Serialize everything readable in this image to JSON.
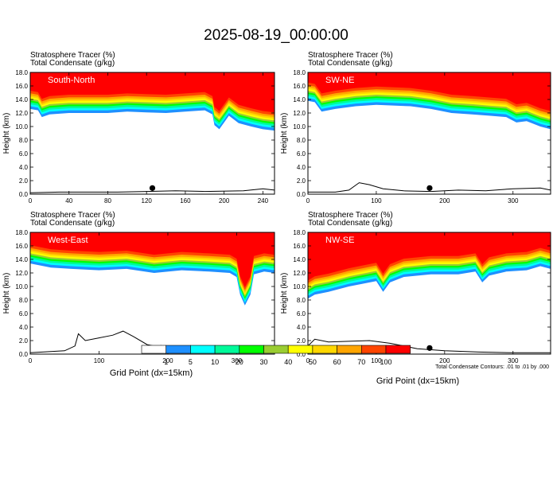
{
  "title": "2025-08-19_00:00:00",
  "panel_labels": {
    "line1": "Stratosphere Tracer   (%)",
    "line2": "Total Condensate   (g/kg)"
  },
  "ylabel": "Height (km)",
  "xlabel": "Grid Point (dx=15km)",
  "contour_note": "Total Condensate Contours: .01 to .01 by .000",
  "colorbar": {
    "labels": [
      "1",
      "5",
      "10",
      "20",
      "30",
      "40",
      "50",
      "60",
      "70",
      "100"
    ],
    "colors": [
      "#ffffff",
      "#1e90ff",
      "#00ffff",
      "#00fa9a",
      "#00ff00",
      "#9acd32",
      "#ffff00",
      "#ffd700",
      "#ffa500",
      "#ff4500",
      "#ff0000"
    ]
  },
  "chart_data": [
    {
      "type": "heatmap",
      "name": "South-North",
      "xlim": [
        0,
        252
      ],
      "xticks": [
        0,
        40,
        80,
        120,
        160,
        200,
        240
      ],
      "ylim": [
        0,
        18
      ],
      "yticks": [
        0.0,
        2.0,
        4.0,
        6.0,
        8.0,
        10.0,
        12.0,
        14.0,
        16.0,
        18.0
      ],
      "tropopause": [
        [
          0,
          13.6
        ],
        [
          8,
          13.4
        ],
        [
          12,
          12.4
        ],
        [
          20,
          12.8
        ],
        [
          40,
          13.0
        ],
        [
          60,
          13.0
        ],
        [
          80,
          13.0
        ],
        [
          100,
          13.2
        ],
        [
          120,
          13.1
        ],
        [
          140,
          13.0
        ],
        [
          160,
          13.2
        ],
        [
          180,
          13.4
        ],
        [
          188,
          12.8
        ],
        [
          190,
          11.2
        ],
        [
          195,
          10.6
        ],
        [
          200,
          11.6
        ],
        [
          205,
          12.6
        ],
        [
          215,
          11.5
        ],
        [
          228,
          11.0
        ],
        [
          240,
          10.6
        ],
        [
          252,
          10.4
        ]
      ],
      "terrain": [
        [
          0,
          0.2
        ],
        [
          30,
          0.3
        ],
        [
          60,
          0.3
        ],
        [
          90,
          0.3
        ],
        [
          120,
          0.4
        ],
        [
          150,
          0.5
        ],
        [
          180,
          0.4
        ],
        [
          220,
          0.5
        ],
        [
          240,
          0.8
        ],
        [
          252,
          0.6
        ]
      ],
      "marker_x": 126
    },
    {
      "type": "heatmap",
      "name": "SW-NE",
      "xlim": [
        0,
        355
      ],
      "xticks": [
        0,
        100,
        200,
        300
      ],
      "ylim": [
        0,
        18
      ],
      "yticks": [
        0.0,
        2.0,
        4.0,
        6.0,
        8.0,
        10.0,
        12.0,
        14.0,
        16.0,
        18.0
      ],
      "tropopause": [
        [
          0,
          14.8
        ],
        [
          10,
          14.6
        ],
        [
          20,
          13.2
        ],
        [
          40,
          13.6
        ],
        [
          70,
          14.0
        ],
        [
          100,
          14.2
        ],
        [
          150,
          14.0
        ],
        [
          180,
          13.6
        ],
        [
          210,
          13.0
        ],
        [
          240,
          12.8
        ],
        [
          265,
          12.6
        ],
        [
          290,
          12.4
        ],
        [
          305,
          11.6
        ],
        [
          320,
          11.8
        ],
        [
          340,
          11.0
        ],
        [
          355,
          10.6
        ]
      ],
      "terrain": [
        [
          0,
          0.3
        ],
        [
          40,
          0.3
        ],
        [
          60,
          0.6
        ],
        [
          75,
          1.7
        ],
        [
          90,
          1.4
        ],
        [
          110,
          0.8
        ],
        [
          140,
          0.5
        ],
        [
          180,
          0.4
        ],
        [
          220,
          0.6
        ],
        [
          260,
          0.5
        ],
        [
          300,
          0.8
        ],
        [
          340,
          0.9
        ],
        [
          355,
          0.6
        ]
      ],
      "marker_x": 178
    },
    {
      "type": "heatmap",
      "name": "West-East",
      "xlim": [
        0,
        355
      ],
      "xticks": [
        0,
        100,
        200,
        300
      ],
      "ylim": [
        0,
        18
      ],
      "yticks": [
        0.0,
        2.0,
        4.0,
        6.0,
        8.0,
        10.0,
        12.0,
        14.0,
        16.0,
        18.0
      ],
      "tropopause": [
        [
          0,
          14.4
        ],
        [
          30,
          13.8
        ],
        [
          60,
          13.6
        ],
        [
          100,
          13.4
        ],
        [
          140,
          13.6
        ],
        [
          180,
          13.0
        ],
        [
          220,
          13.4
        ],
        [
          260,
          13.2
        ],
        [
          290,
          13.0
        ],
        [
          300,
          12.4
        ],
        [
          305,
          9.8
        ],
        [
          312,
          8.2
        ],
        [
          320,
          9.8
        ],
        [
          325,
          12.8
        ],
        [
          340,
          13.2
        ],
        [
          355,
          13.0
        ]
      ],
      "terrain": [
        [
          0,
          0.2
        ],
        [
          50,
          0.5
        ],
        [
          65,
          1.2
        ],
        [
          70,
          3.0
        ],
        [
          80,
          2.0
        ],
        [
          100,
          2.4
        ],
        [
          120,
          2.8
        ],
        [
          135,
          3.4
        ],
        [
          150,
          2.6
        ],
        [
          170,
          1.4
        ],
        [
          200,
          0.8
        ],
        [
          240,
          0.4
        ],
        [
          280,
          0.3
        ],
        [
          320,
          0.2
        ],
        [
          355,
          0.2
        ]
      ],
      "marker_x": 190
    },
    {
      "type": "heatmap",
      "name": "NW-SE",
      "xlim": [
        0,
        355
      ],
      "xticks": [
        0,
        100,
        200,
        300
      ],
      "ylim": [
        0,
        18
      ],
      "yticks": [
        0.0,
        2.0,
        4.0,
        6.0,
        8.0,
        10.0,
        12.0,
        14.0,
        16.0,
        18.0
      ],
      "tropopause": [
        [
          0,
          9.2
        ],
        [
          10,
          9.8
        ],
        [
          30,
          10.2
        ],
        [
          60,
          11.0
        ],
        [
          80,
          11.4
        ],
        [
          100,
          11.8
        ],
        [
          110,
          10.2
        ],
        [
          120,
          11.6
        ],
        [
          140,
          12.4
        ],
        [
          180,
          12.8
        ],
        [
          220,
          12.8
        ],
        [
          245,
          13.2
        ],
        [
          255,
          11.6
        ],
        [
          265,
          12.6
        ],
        [
          290,
          13.2
        ],
        [
          320,
          13.4
        ],
        [
          340,
          14.0
        ],
        [
          355,
          13.6
        ]
      ],
      "terrain": [
        [
          0,
          1.2
        ],
        [
          10,
          2.2
        ],
        [
          30,
          1.8
        ],
        [
          60,
          1.9
        ],
        [
          90,
          2.0
        ],
        [
          120,
          1.6
        ],
        [
          140,
          1.2
        ],
        [
          160,
          0.8
        ],
        [
          200,
          0.5
        ],
        [
          250,
          0.3
        ],
        [
          300,
          0.2
        ],
        [
          355,
          0.2
        ]
      ],
      "marker_x": 178
    }
  ]
}
